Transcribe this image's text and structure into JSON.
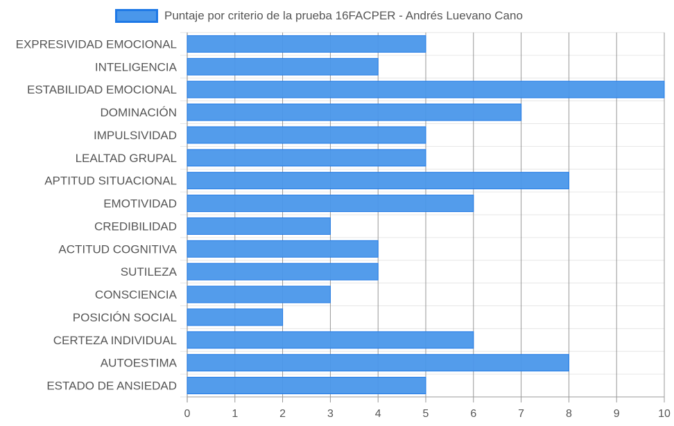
{
  "chart_data": {
    "type": "bar",
    "orientation": "horizontal",
    "legend": {
      "position": "top-center"
    },
    "categories": [
      "EXPRESIVIDAD EMOCIONAL",
      "INTELIGENCIA",
      "ESTABILIDAD EMOCIONAL",
      "DOMINACIÓN",
      "IMPULSIVIDAD",
      "LEALTAD GRUPAL",
      "APTITUD SITUACIONAL",
      "EMOTIVIDAD",
      "CREDIBILIDAD",
      "ACTITUD COGNITIVA",
      "SUTILEZA",
      "CONSCIENCIA",
      "POSICIÓN SOCIAL",
      "CERTEZA INDIVIDUAL",
      "AUTOESTIMA",
      "ESTADO DE ANSIEDAD"
    ],
    "series": [
      {
        "name": "Puntaje por criterio de la prueba 16FACPER - Andrés Luevano Cano",
        "values": [
          5,
          4,
          10,
          7,
          5,
          5,
          8,
          6,
          3,
          4,
          4,
          3,
          2,
          6,
          8,
          5
        ],
        "color": "#4a97ea",
        "border_color": "#1e78e6"
      }
    ],
    "xlim": [
      0,
      10
    ],
    "xticks": [
      "0",
      "1",
      "2",
      "3",
      "4",
      "5",
      "6",
      "7",
      "8",
      "9",
      "10"
    ],
    "grid": true
  }
}
